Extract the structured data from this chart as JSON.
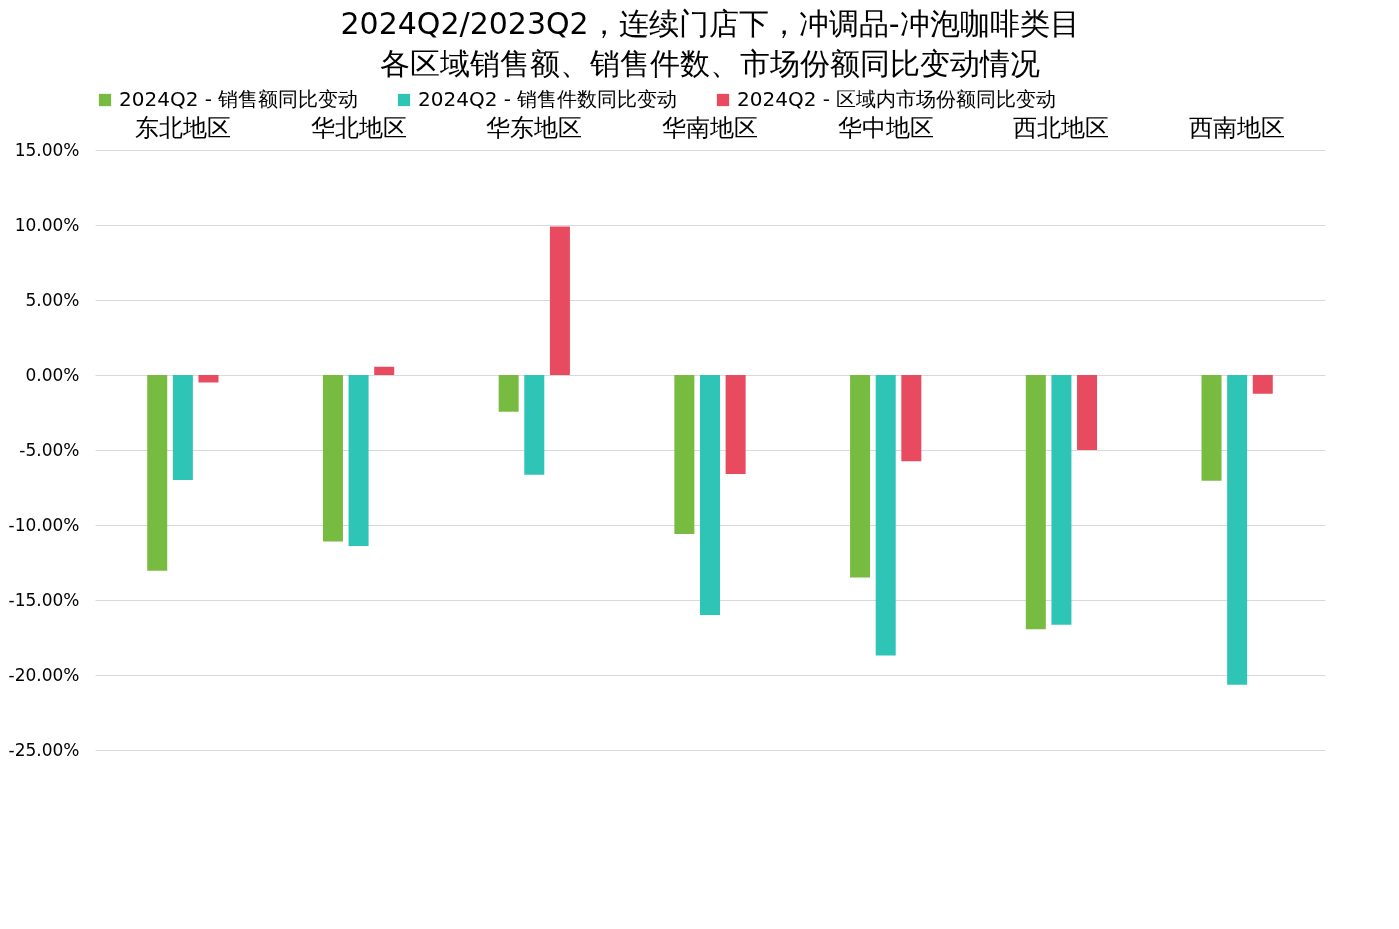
{
  "chart_data": {
    "type": "bar",
    "title": "2024Q2/2023Q2，连续门店下，冲调品-冲泡咖啡类目",
    "subtitle": "各区域销售额、销售件数、市场份额同比变动情况",
    "categories": [
      "东北地区",
      "华北地区",
      "华东地区",
      "华南地区",
      "华中地区",
      "西北地区",
      "西南地区"
    ],
    "series": [
      {
        "name": "2024Q2 - 销售额同比变动",
        "color": "#77bc41",
        "values": [
          -13.05,
          -11.1,
          -2.45,
          -10.6,
          -13.5,
          -16.95,
          -7.05
        ]
      },
      {
        "name": "2024Q2 - 销售件数同比变动",
        "color": "#2ec4b6",
        "values": [
          -7.0,
          -11.4,
          -6.65,
          -16.0,
          -18.7,
          -16.65,
          -20.65
        ]
      },
      {
        "name": "2024Q2 - 区域内市场份额同比变动",
        "color": "#e84a5f",
        "values": [
          -0.5,
          0.55,
          9.9,
          -6.6,
          -5.75,
          -5.0,
          -1.25
        ]
      }
    ],
    "ylim": [
      -25,
      15
    ],
    "yticks": [
      {
        "value": -25,
        "label": "-25.00%"
      },
      {
        "value": -20,
        "label": "-20.00%"
      },
      {
        "value": -15,
        "label": "-15.00%"
      },
      {
        "value": -10,
        "label": "-10.00%"
      },
      {
        "value": -5,
        "label": "-5.00%"
      },
      {
        "value": 0,
        "label": "0.00%"
      },
      {
        "value": 5,
        "label": "5.00%"
      },
      {
        "value": 10,
        "label": "10.00%"
      },
      {
        "value": 15,
        "label": "15.00%"
      }
    ],
    "grid": "y",
    "legend": "top"
  }
}
